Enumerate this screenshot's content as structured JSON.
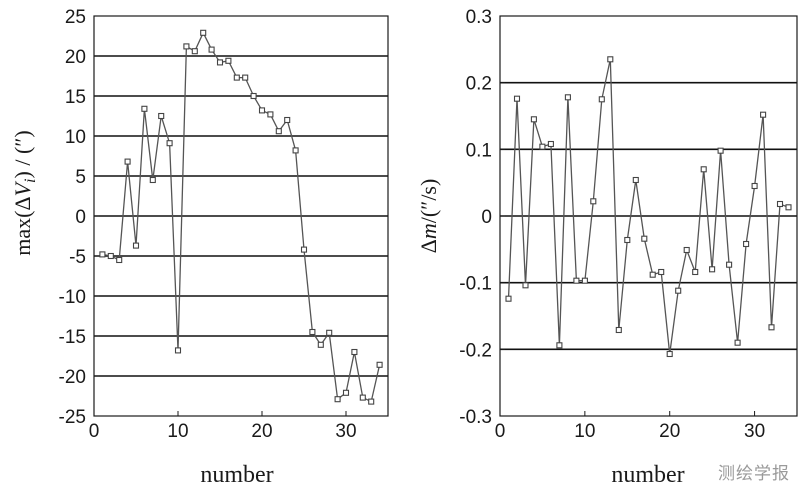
{
  "watermark": "测绘学报",
  "chart_data": [
    {
      "type": "line",
      "xlabel": "number",
      "ylabel_parts": [
        "max(",
        "Δ",
        "V",
        "i",
        ") / (″)"
      ],
      "xlim": [
        0,
        35
      ],
      "ylim": [
        -25,
        25
      ],
      "xticks": [
        0,
        10,
        20,
        30
      ],
      "xtick_labels": [
        "0",
        "10",
        "20",
        "30"
      ],
      "yticks": [
        -25,
        -20,
        -15,
        -10,
        -5,
        0,
        5,
        10,
        15,
        20,
        25
      ],
      "ytick_labels": [
        "-25",
        "-20",
        "-15",
        "-10",
        "-5",
        "0",
        "5",
        "10",
        "15",
        "20",
        "25"
      ],
      "grid": "horizontal",
      "x": [
        1,
        2,
        3,
        4,
        5,
        6,
        7,
        8,
        9,
        10,
        11,
        12,
        13,
        14,
        15,
        16,
        17,
        18,
        19,
        20,
        21,
        22,
        23,
        24,
        25,
        26,
        27,
        28,
        29,
        30,
        31,
        32,
        33,
        34
      ],
      "y": [
        -4.8,
        -5.0,
        -5.5,
        6.8,
        -3.7,
        13.4,
        4.5,
        12.5,
        9.1,
        -16.8,
        21.2,
        20.6,
        22.9,
        20.8,
        19.2,
        19.4,
        17.3,
        17.3,
        15.0,
        13.2,
        12.7,
        10.6,
        12.0,
        8.2,
        -4.2,
        -14.5,
        -16.1,
        -14.6,
        -22.9,
        -22.1,
        -17.0,
        -22.7,
        -23.2,
        -18.6
      ]
    },
    {
      "type": "line",
      "xlabel": "number",
      "ylabel_parts": [
        "Δ",
        "m",
        "/(″/s)"
      ],
      "xlim": [
        0,
        35
      ],
      "ylim": [
        -0.3,
        0.3
      ],
      "xticks": [
        0,
        10,
        20,
        30
      ],
      "xtick_labels": [
        "0",
        "10",
        "20",
        "30"
      ],
      "yticks": [
        -0.3,
        -0.2,
        -0.1,
        0,
        0.1,
        0.2,
        0.3
      ],
      "ytick_labels": [
        "-0.3",
        "-0.2",
        "-0.1",
        "0",
        "0.1",
        "0.2",
        "0.3"
      ],
      "grid": "horizontal",
      "x": [
        1,
        2,
        3,
        4,
        5,
        6,
        7,
        8,
        9,
        10,
        11,
        12,
        13,
        14,
        15,
        16,
        17,
        18,
        19,
        20,
        21,
        22,
        23,
        24,
        25,
        26,
        27,
        28,
        29,
        30,
        31,
        32,
        33,
        34
      ],
      "y": [
        -0.124,
        0.176,
        -0.104,
        0.145,
        0.104,
        0.108,
        -0.194,
        0.178,
        -0.097,
        -0.097,
        0.022,
        0.175,
        0.235,
        -0.171,
        -0.036,
        0.054,
        -0.034,
        -0.088,
        -0.084,
        -0.207,
        -0.112,
        -0.051,
        -0.084,
        0.07,
        -0.08,
        0.098,
        -0.073,
        -0.19,
        -0.042,
        0.045,
        0.152,
        -0.167,
        0.018,
        0.013
      ]
    }
  ]
}
